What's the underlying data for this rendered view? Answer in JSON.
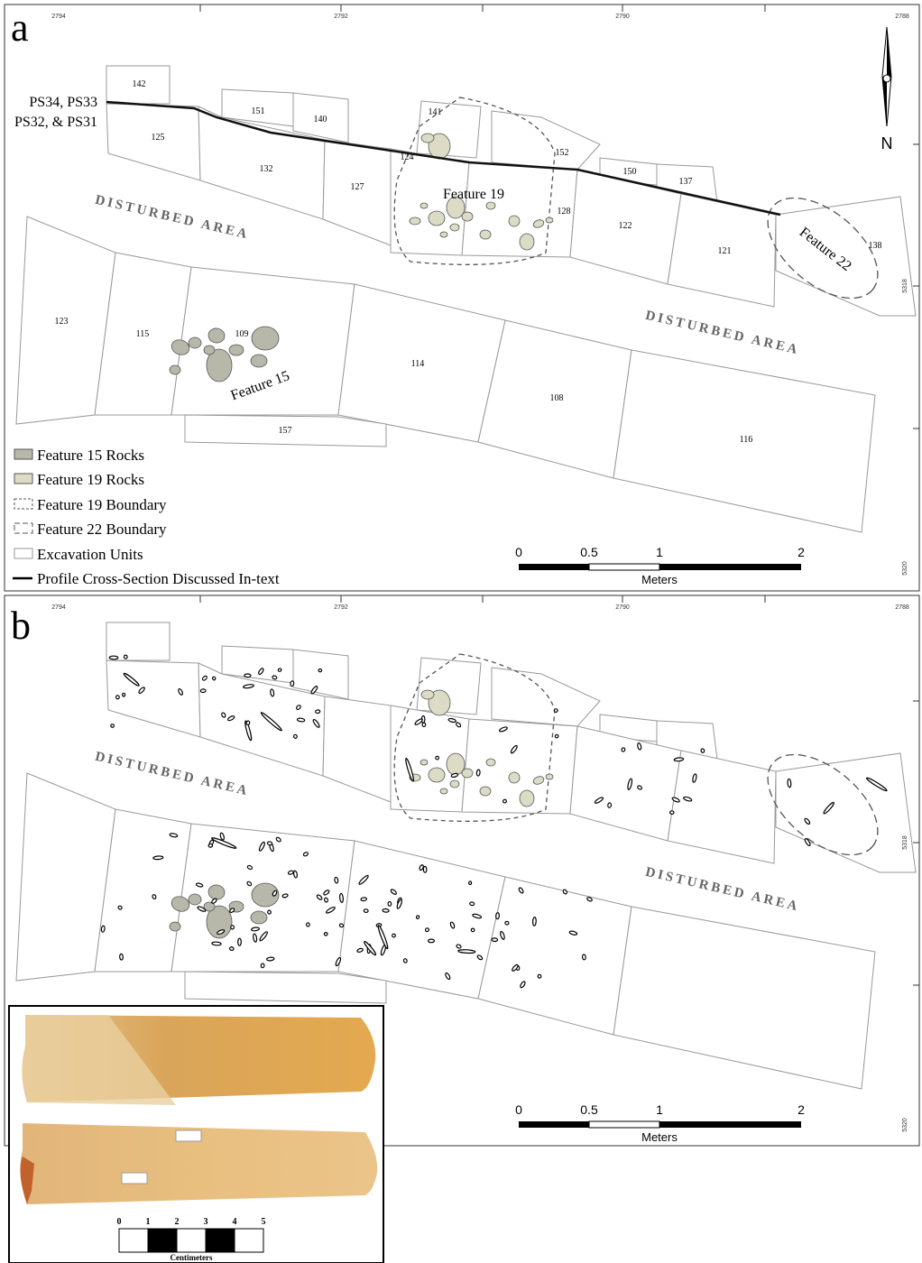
{
  "panels": [
    {
      "label": "a",
      "grid_top": [
        "2794",
        "2792",
        "2790",
        "2788"
      ],
      "grid_right": [
        "5318",
        "5320"
      ],
      "units": [
        "142",
        "125",
        "151",
        "140",
        "132",
        "127",
        "141",
        "124",
        "152",
        "128",
        "150",
        "137",
        "122",
        "121",
        "138",
        "123",
        "115",
        "109",
        "114",
        "108",
        "116",
        "157"
      ],
      "area_labels": [
        "DISTURBED AREA",
        "DISTURBED AREA"
      ],
      "feature_labels": [
        "Feature 19",
        "Feature 15",
        "Feature 22"
      ],
      "profile_label": [
        "PS34, PS33",
        "PS32, & PS31"
      ],
      "north": "N",
      "legend": [
        "Feature 15 Rocks",
        "Feature 19 Rocks",
        "Feature 19 Boundary",
        "Feature 22 Boundary",
        "Excavation Units",
        "Profile Cross-Section Discussed In-text"
      ],
      "scale": {
        "ticks": [
          "0",
          "0.5",
          "1",
          "2"
        ],
        "unit": "Meters"
      }
    },
    {
      "label": "b",
      "grid_top": [
        "2794",
        "2792",
        "2790",
        "2788"
      ],
      "grid_right": [
        "5318",
        "5320"
      ],
      "area_labels": [
        "DISTURBED AREA",
        "DISTURBED AREA"
      ],
      "scale": {
        "ticks": [
          "0",
          "0.5",
          "1",
          "2"
        ],
        "unit": "Meters"
      },
      "inset": {
        "scale_ticks": [
          "0",
          "1",
          "2",
          "3",
          "4",
          "5"
        ],
        "unit": "Centimeters"
      }
    }
  ]
}
